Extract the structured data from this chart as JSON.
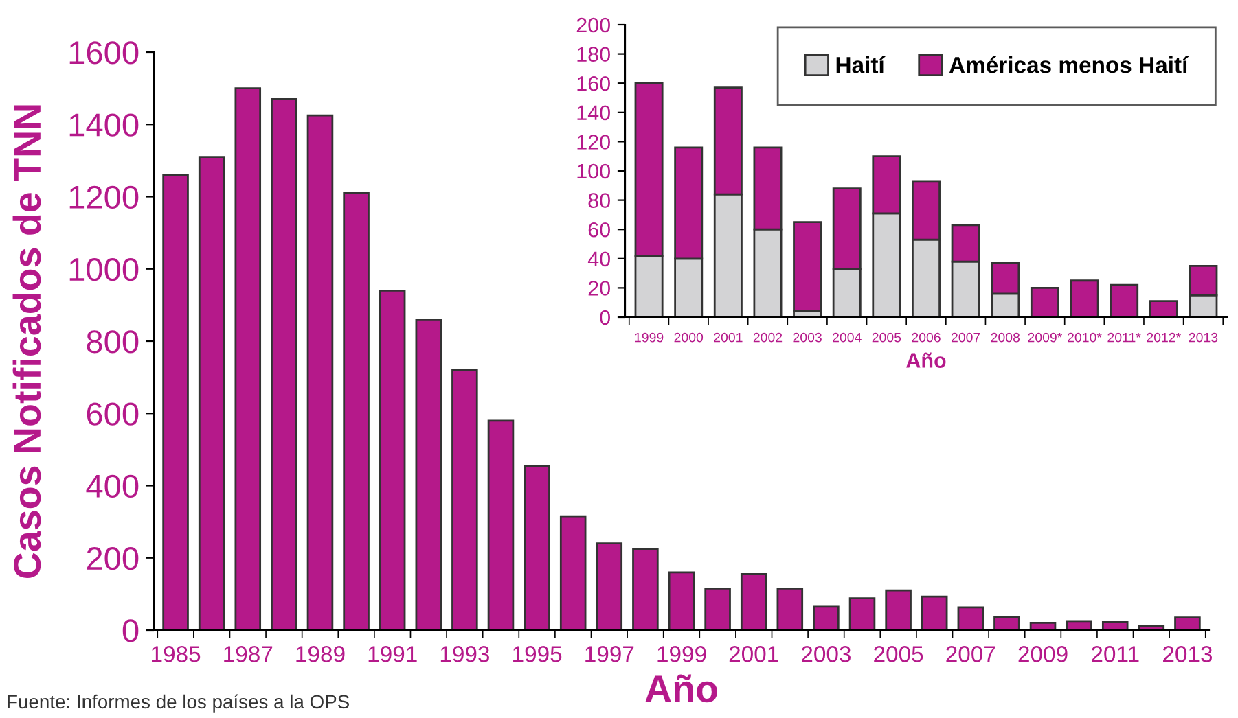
{
  "chart_data": [
    {
      "type": "bar",
      "xlabel": "Año",
      "ylabel": "Casos Notificados de TNN",
      "categories": [
        "1985",
        null,
        "1987",
        null,
        "1989",
        null,
        "1991",
        null,
        "1993",
        null,
        "1995",
        null,
        "1997",
        null,
        "1999",
        null,
        "2001",
        null,
        "2003",
        null,
        "2005",
        null,
        "2007",
        null,
        "2009",
        null,
        "2011",
        null,
        "2013"
      ],
      "series": [
        {
          "color": "#b5198a",
          "values": [
            1260,
            1310,
            1500,
            1470,
            1425,
            1210,
            940,
            860,
            720,
            580,
            455,
            315,
            240,
            225,
            160,
            115,
            155,
            115,
            65,
            88,
            110,
            93,
            63,
            37,
            20,
            25,
            22,
            11,
            35
          ]
        }
      ],
      "ylim": [
        0,
        1600
      ],
      "yticks": [
        0,
        200,
        400,
        600,
        800,
        1000,
        1200,
        1400,
        1600
      ],
      "grid": false,
      "legend": false,
      "annotations": [
        "Fuente: Informes de los países a la OPS"
      ]
    },
    {
      "type": "bar",
      "stacked": true,
      "xlabel": "Año",
      "categories": [
        "1999",
        "2000",
        "2001",
        "2002",
        "2003",
        "2004",
        "2005",
        "2006",
        "2007",
        "2008",
        "2009*",
        "2010*",
        "2011*",
        "2012*",
        "2013"
      ],
      "series": [
        {
          "name": "Haití",
          "color": "#d3d3d5",
          "values": [
            42,
            40,
            84,
            60,
            4,
            33,
            71,
            53,
            38,
            16,
            0,
            0,
            0,
            0,
            15
          ]
        },
        {
          "name": "Américas menos Haití",
          "color": "#b5198a",
          "values": [
            118,
            76,
            73,
            56,
            61,
            55,
            39,
            40,
            25,
            21,
            20,
            25,
            22,
            11,
            20
          ]
        }
      ],
      "ylim": [
        0,
        200
      ],
      "yticks": [
        0,
        20,
        40,
        60,
        80,
        100,
        120,
        140,
        160,
        180,
        200
      ],
      "grid": false,
      "legend": "top right"
    }
  ]
}
